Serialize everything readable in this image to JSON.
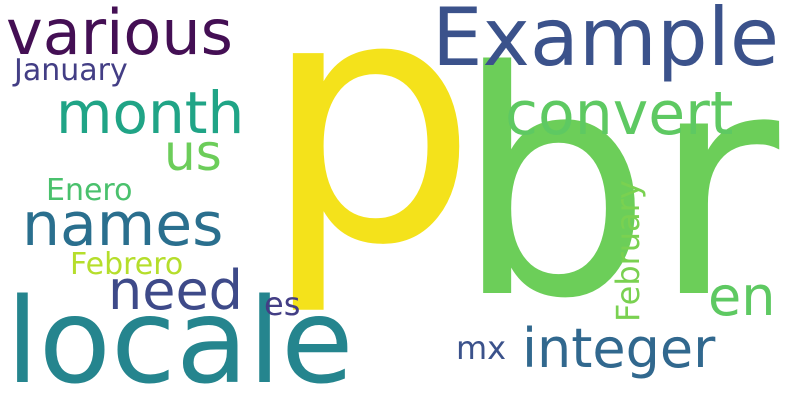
{
  "words": [
    {
      "key": "p",
      "text": "p",
      "color": "#f4e21b",
      "weight": 1.0
    },
    {
      "key": "br",
      "text": "br",
      "color": "#6cce59",
      "weight": 0.95
    },
    {
      "key": "locale",
      "text": "locale",
      "color": "#25858e",
      "weight": 0.55
    },
    {
      "key": "example",
      "text": "Example",
      "color": "#3b528b",
      "weight": 0.3
    },
    {
      "key": "various",
      "text": "various",
      "color": "#440f54",
      "weight": 0.22
    },
    {
      "key": "month",
      "text": "month",
      "color": "#20a486",
      "weight": 0.2
    },
    {
      "key": "convert",
      "text": "convert",
      "color": "#5ec962",
      "weight": 0.2
    },
    {
      "key": "names",
      "text": "names",
      "color": "#2a6f8e",
      "weight": 0.2
    },
    {
      "key": "need",
      "text": "need",
      "color": "#3e4a89",
      "weight": 0.18
    },
    {
      "key": "integer",
      "text": "integer",
      "color": "#31688e",
      "weight": 0.18
    },
    {
      "key": "us",
      "text": "us",
      "color": "#6ccd5a",
      "weight": 0.15
    },
    {
      "key": "en",
      "text": "en",
      "color": "#5ec962",
      "weight": 0.15
    },
    {
      "key": "february",
      "text": "February",
      "color": "#7ad151",
      "weight": 0.1
    },
    {
      "key": "january",
      "text": "January",
      "color": "#433e85",
      "weight": 0.08
    },
    {
      "key": "enero",
      "text": "Enero",
      "color": "#4ac16d",
      "weight": 0.08
    },
    {
      "key": "febrero",
      "text": "Febrero",
      "color": "#b5de2b",
      "weight": 0.08
    },
    {
      "key": "es",
      "text": "es",
      "color": "#433e85",
      "weight": 0.06
    },
    {
      "key": "mx",
      "text": "mx",
      "color": "#3b528b",
      "weight": 0.06
    }
  ]
}
